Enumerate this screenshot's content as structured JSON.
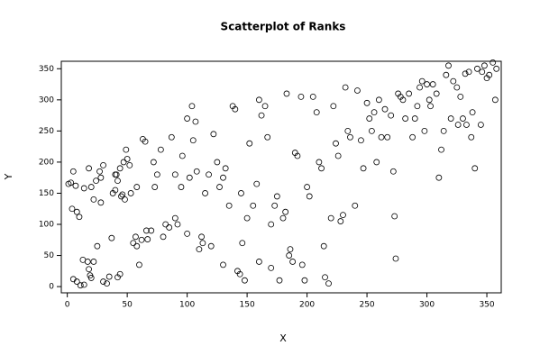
{
  "chart_data": {
    "type": "scatter",
    "title": "Scatterplot of Ranks",
    "x_label": "X",
    "y_label": "Y",
    "xlim": [
      -5,
      362
    ],
    "ylim": [
      -10,
      362
    ],
    "xticks": [
      0,
      50,
      100,
      150,
      200,
      250,
      300,
      350
    ],
    "yticks": [
      0,
      50,
      100,
      150,
      200,
      250,
      300,
      350
    ],
    "color": "#000000",
    "x": [
      1,
      3,
      5,
      4,
      7,
      8,
      10,
      5,
      8,
      11,
      14,
      13,
      17,
      18,
      19,
      20,
      14,
      18,
      20,
      22,
      24,
      25,
      27,
      28,
      30,
      28,
      22,
      30,
      33,
      35,
      37,
      38,
      40,
      42,
      41,
      44,
      40,
      42,
      44,
      45,
      46,
      48,
      47,
      49,
      50,
      52,
      53,
      55,
      57,
      58,
      58,
      60,
      62,
      63,
      65,
      66,
      67,
      70,
      72,
      73,
      75,
      78,
      80,
      82,
      85,
      87,
      90,
      90,
      92,
      95,
      96,
      100,
      100,
      102,
      104,
      105,
      107,
      108,
      110,
      112,
      113,
      115,
      118,
      120,
      122,
      125,
      127,
      130,
      130,
      132,
      135,
      138,
      140,
      142,
      144,
      145,
      146,
      148,
      150,
      152,
      155,
      158,
      160,
      160,
      162,
      165,
      167,
      170,
      170,
      173,
      175,
      177,
      180,
      182,
      183,
      185,
      186,
      188,
      190,
      192,
      195,
      196,
      198,
      200,
      202,
      205,
      208,
      210,
      212,
      214,
      215,
      218,
      220,
      222,
      224,
      226,
      228,
      230,
      232,
      234,
      236,
      240,
      242,
      245,
      247,
      250,
      252,
      254,
      256,
      258,
      260,
      262,
      265,
      267,
      270,
      272,
      273,
      274,
      276,
      278,
      280,
      282,
      285,
      288,
      290,
      292,
      294,
      296,
      298,
      300,
      302,
      305,
      308,
      310,
      312,
      314,
      316,
      318,
      320,
      322,
      325,
      328,
      330,
      332,
      335,
      337,
      340,
      342,
      345,
      348,
      350,
      352,
      355,
      357,
      358,
      346,
      338,
      333,
      326,
      303
    ],
    "y": [
      165,
      167,
      185,
      125,
      162,
      120,
      112,
      12,
      8,
      2,
      3,
      43,
      40,
      28,
      18,
      14,
      158,
      190,
      160,
      140,
      170,
      65,
      185,
      175,
      195,
      135,
      40,
      8,
      5,
      16,
      78,
      150,
      180,
      170,
      180,
      190,
      155,
      15,
      20,
      145,
      148,
      140,
      200,
      220,
      205,
      195,
      150,
      70,
      80,
      160,
      65,
      35,
      75,
      237,
      233,
      90,
      76,
      90,
      200,
      160,
      180,
      220,
      80,
      100,
      95,
      240,
      180,
      110,
      100,
      160,
      210,
      85,
      270,
      175,
      290,
      235,
      265,
      185,
      60,
      80,
      70,
      150,
      180,
      65,
      245,
      200,
      160,
      35,
      175,
      190,
      130,
      290,
      285,
      25,
      20,
      150,
      70,
      10,
      110,
      230,
      130,
      165,
      40,
      300,
      275,
      290,
      240,
      100,
      30,
      130,
      145,
      10,
      110,
      120,
      310,
      50,
      60,
      40,
      215,
      210,
      305,
      35,
      10,
      160,
      145,
      305,
      280,
      200,
      190,
      65,
      15,
      5,
      110,
      290,
      230,
      210,
      105,
      115,
      320,
      250,
      240,
      130,
      315,
      235,
      190,
      295,
      270,
      250,
      280,
      200,
      300,
      240,
      285,
      240,
      275,
      185,
      113,
      45,
      310,
      305,
      300,
      270,
      310,
      240,
      270,
      290,
      320,
      330,
      250,
      325,
      300,
      325,
      310,
      175,
      220,
      250,
      340,
      355,
      270,
      330,
      320,
      305,
      270,
      342,
      345,
      240,
      190,
      350,
      260,
      355,
      335,
      340,
      360,
      300,
      350,
      345,
      280,
      260,
      260,
      290
    ]
  }
}
